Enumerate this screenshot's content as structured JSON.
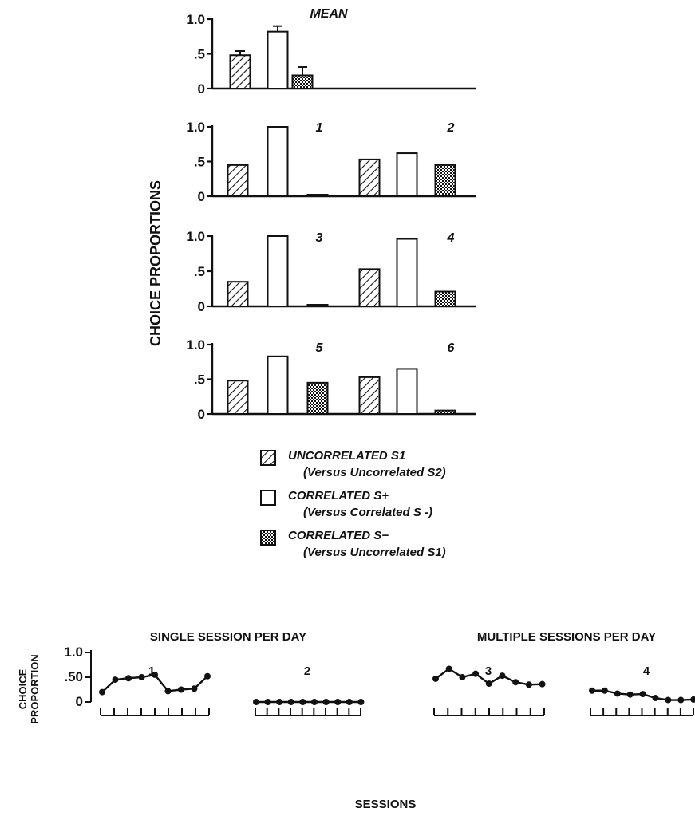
{
  "chart_data": [
    {
      "type": "bar",
      "panels": [
        {
          "title": "MEAN",
          "groups": [
            {
              "values": [
                0.48,
                0.82,
                0.19
              ],
              "errors": [
                0.06,
                0.08,
                0.12
              ]
            }
          ]
        },
        {
          "groups": [
            {
              "label": "1",
              "values": [
                0.45,
                1.0,
                0.01
              ]
            },
            {
              "label": "2",
              "values": [
                0.53,
                0.62,
                0.45
              ]
            }
          ]
        },
        {
          "groups": [
            {
              "label": "3",
              "values": [
                0.35,
                1.0,
                0.02
              ]
            },
            {
              "label": "4",
              "values": [
                0.53,
                0.96,
                0.21
              ]
            }
          ]
        },
        {
          "groups": [
            {
              "label": "5",
              "values": [
                0.48,
                0.83,
                0.45
              ]
            },
            {
              "label": "6",
              "values": [
                0.53,
                0.65,
                0.05
              ]
            }
          ]
        }
      ],
      "series": [
        {
          "name": "UNCORRELATED S1",
          "sub": "(Versus Uncorrelated S2)",
          "pattern": "hatch"
        },
        {
          "name": "CORRELATED S+",
          "sub": "(Versus Correlated S -)",
          "pattern": "open"
        },
        {
          "name": "CORRELATED S−",
          "sub": "(Versus Uncorrelated S1)",
          "pattern": "stipple"
        }
      ],
      "ylabel": "CHOICE PROPORTIONS",
      "yticks": [
        "1.0",
        ".5",
        "0"
      ],
      "ylim": [
        0,
        1.0
      ]
    },
    {
      "type": "line",
      "headings": [
        "SINGLE SESSION PER DAY",
        "MULTIPLE SESSIONS PER DAY"
      ],
      "panels": [
        {
          "label": "1",
          "values": [
            0.2,
            0.45,
            0.48,
            0.5,
            0.55,
            0.22,
            0.25,
            0.27,
            0.52
          ]
        },
        {
          "label": "2",
          "values": [
            0,
            0,
            0,
            0,
            0,
            0,
            0,
            0,
            0,
            0
          ]
        },
        {
          "label": "3",
          "values": [
            0.47,
            0.67,
            0.5,
            0.57,
            0.37,
            0.53,
            0.4,
            0.35,
            0.36
          ]
        },
        {
          "label": "4",
          "values": [
            0.23,
            0.23,
            0.17,
            0.15,
            0.16,
            0.08,
            0.04,
            0.04,
            0.05
          ]
        }
      ],
      "ylabel": [
        "CHOICE",
        "PROPORTION"
      ],
      "yticks": [
        "1.0",
        ".50",
        "0"
      ],
      "xlabel": "SESSIONS",
      "ylim": [
        0,
        1.0
      ]
    }
  ]
}
